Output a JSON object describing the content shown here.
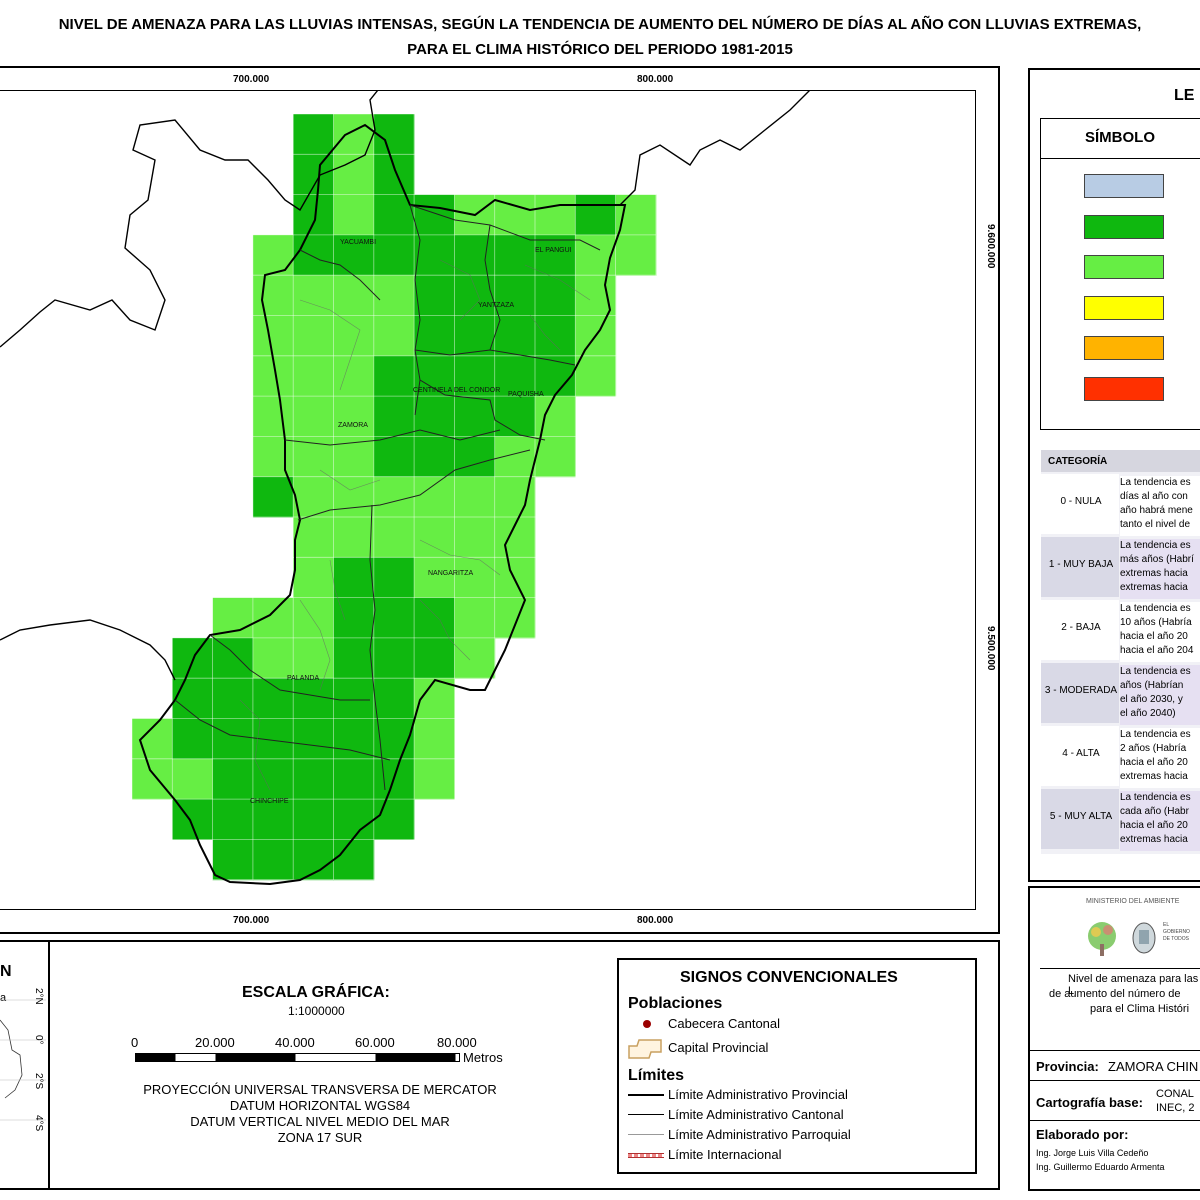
{
  "title": {
    "line1": "NIVEL DE AMENAZA PARA LAS LLUVIAS INTENSAS, SEGÚN LA TENDENCIA DE AUMENTO DEL NÚMERO DE DÍAS AL AÑO CON LLUVIAS EXTREMAS,",
    "line2": "PARA EL CLIMA HISTÓRICO DEL PERIODO 1981-2015"
  },
  "map": {
    "x_ticks": [
      "700.000",
      "800.000"
    ],
    "y_ticks": [
      "9.600.000",
      "9.500.000"
    ],
    "places": [
      "YACUAMBI",
      "EL PANGUI",
      "YANTZAZA",
      "CENTINELA DEL CONDOR",
      "PAQUISHA",
      "ZAMORA",
      "NANGARITZA",
      "PALANDA",
      "CHINCHIPE"
    ]
  },
  "legend": {
    "title": "LE",
    "symbol_header": "SÍMBOLO",
    "swatch_colors": [
      "#B8CCE4",
      "#0FB80F",
      "#66EE44",
      "#FFFF00",
      "#FFB300",
      "#FF3000"
    ],
    "category_header": "CATEGORÍA",
    "categories": [
      {
        "name": "0 - NULA",
        "lines": [
          "La tendencia es",
          "días al año con",
          "año habrá mene",
          "tanto el nivel de"
        ]
      },
      {
        "name": "1 - MUY BAJA",
        "lines": [
          "La tendencia es",
          "más años (Habrí",
          "extremas hacia",
          "extremas hacia"
        ]
      },
      {
        "name": "2 - BAJA",
        "lines": [
          "La tendencia es",
          "10 años (Habría",
          "hacia el año 20",
          "hacia el año 204"
        ]
      },
      {
        "name": "3 - MODERADA",
        "lines": [
          "La tendencia es",
          "años (Habrían",
          "el año 2030, y",
          "el año 2040)"
        ]
      },
      {
        "name": "4 - ALTA",
        "lines": [
          "La tendencia es",
          "2 años (Habría",
          "hacia el año 20",
          "extremas hacia"
        ]
      },
      {
        "name": "5 - MUY ALTA",
        "lines": [
          "La tendencia es",
          "cada año (Habr",
          "hacia el año 20",
          "extremas hacia"
        ]
      }
    ]
  },
  "institution": {
    "ministry": "MINISTERIO DEL AMBIENTE",
    "gov": "EL GOBIERNO DE TODOS",
    "desc_lines": [
      "Nivel de amenaza para las L",
      "de aumento del número de",
      "para el Clima Históri"
    ],
    "provincia_label": "Provincia:",
    "provincia_value": "ZAMORA CHIN",
    "cartografia_label": "Cartografía base:",
    "cartografia_value_1": "CONAL",
    "cartografia_value_2": "INEC, 2",
    "elaborado_label": "Elaborado por:",
    "author_1": "Ing. Jorge Luis Villa Cedeño",
    "author_2": "Ing. Guillermo Eduardo Armenta"
  },
  "inset": {
    "label_n": "N",
    "label_a": "a",
    "lat_labels": [
      "2°N",
      "0°",
      "2°S",
      "4°S"
    ]
  },
  "scale": {
    "title": "ESCALA GRÁFICA:",
    "ratio": "1:1000000",
    "ticks": [
      "0",
      "20.000",
      "40.000",
      "60.000",
      "80.000"
    ],
    "unit": "Metros",
    "proj_1": "PROYECCIÓN UNIVERSAL TRANSVERSA DE MERCATOR",
    "proj_2": "DATUM HORIZONTAL WGS84",
    "proj_3": "DATUM VERTICAL NIVEL MEDIO DEL MAR",
    "proj_4": "ZONA 17 SUR"
  },
  "signs": {
    "title": "SIGNOS CONVENCIONALES",
    "poblaciones": "Poblaciones",
    "cabecera": "Cabecera Cantonal",
    "capital": "Capital Provincial",
    "limites": "Límites",
    "provincial": "Límite Administrativo Provincial",
    "cantonal": "Límite Administrativo Cantonal",
    "parroquial": "Límite Administrativo Parroquial",
    "internacional": "Límite Internacional"
  }
}
